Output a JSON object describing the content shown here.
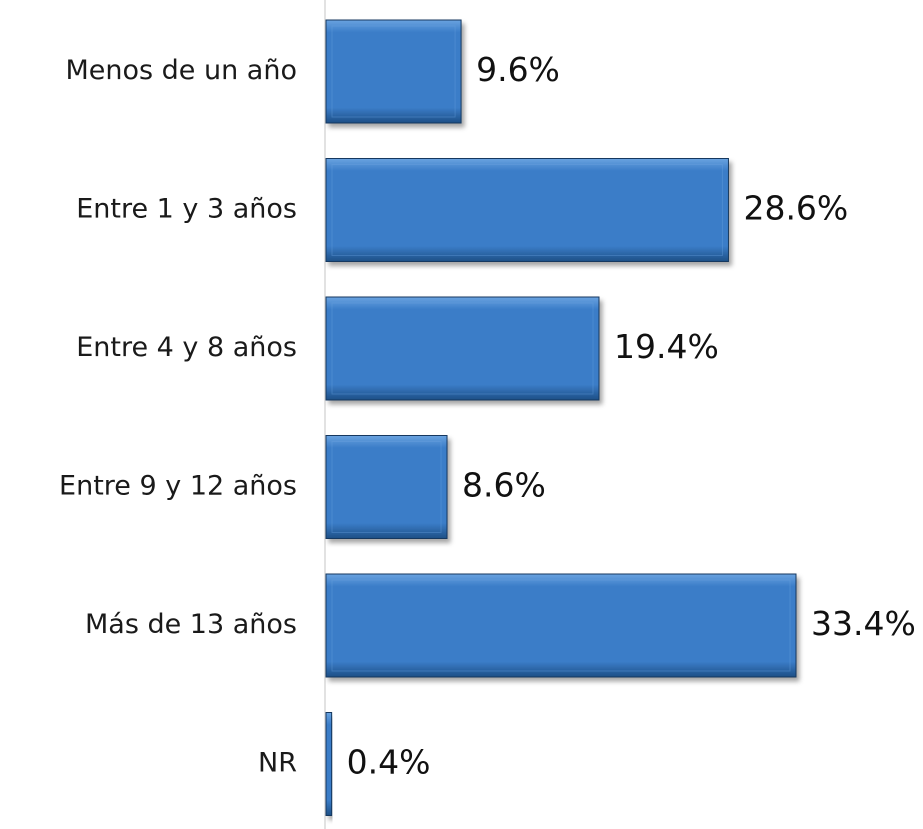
{
  "chart_data": {
    "type": "bar",
    "orientation": "horizontal",
    "categories": [
      "Menos de un año",
      "Entre 1 y 3 años",
      "Entre 4 y 8 años",
      "Entre 9 y 12 años",
      "Más de 13 años",
      "NR"
    ],
    "values": [
      9.6,
      28.6,
      19.4,
      8.6,
      33.4,
      0.4
    ],
    "value_labels": [
      "9.6%",
      "28.6%",
      "19.4%",
      "8.6%",
      "33.4%",
      "0.4%"
    ],
    "unit": "%",
    "xlim": [
      0,
      33.4
    ],
    "grid": false,
    "legend": "none"
  },
  "colors": {
    "bar_fill": "#3b7dc8",
    "bar_highlight": "#6aa3e0",
    "bar_shadow": "#1d4f86",
    "bar_edge": "#16395f",
    "axis_line": "#d9d9d9"
  }
}
